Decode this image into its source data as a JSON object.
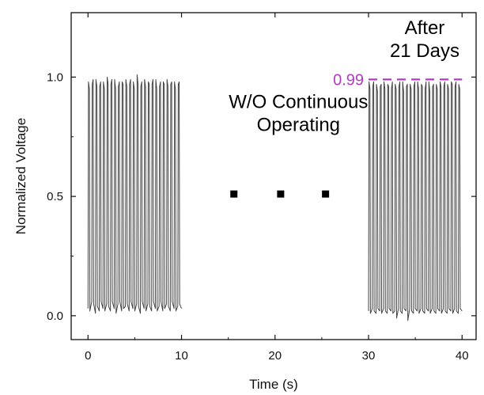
{
  "chart_data": {
    "type": "line",
    "title": "",
    "xlabel": "Time (s)",
    "ylabel": "Normalized Voltage",
    "xlim": [
      -1.8,
      41.5
    ],
    "ylim": [
      -0.1,
      1.27
    ],
    "x_ticks": [
      0,
      10,
      20,
      30,
      40
    ],
    "x_tick_labels": [
      "0",
      "10",
      "20",
      "30",
      "40"
    ],
    "y_ticks": [
      0.0,
      0.5,
      1.0
    ],
    "y_tick_labels": [
      "0.0",
      "0.5",
      "1.0"
    ],
    "grid": false,
    "legend": false,
    "series": [
      {
        "name": "",
        "segment": "initial",
        "color": "#444444",
        "x_range": [
          0,
          10
        ],
        "cycles": 25,
        "high_level": 0.98,
        "low_level": 0.03,
        "x": [
          0.0,
          0.05,
          0.15,
          0.2,
          0.4,
          0.45,
          0.55,
          0.6,
          0.8,
          0.85,
          0.95,
          1.0,
          1.2,
          1.25,
          1.35,
          1.4,
          1.6,
          1.65,
          1.75,
          1.8,
          2.0,
          2.05,
          2.15,
          2.2,
          2.4,
          2.45,
          2.55,
          2.6,
          2.8,
          2.85,
          2.95,
          3.0,
          3.2,
          3.25,
          3.35,
          3.4,
          3.6,
          3.65,
          3.75,
          3.8,
          4.0,
          4.05,
          4.15,
          4.2,
          4.4,
          4.45,
          4.55,
          4.6,
          4.8,
          4.85,
          4.95,
          5.0,
          5.2,
          5.25,
          5.35,
          5.4,
          5.6,
          5.65,
          5.75,
          5.8,
          6.0,
          6.05,
          6.15,
          6.2,
          6.4,
          6.45,
          6.55,
          6.6,
          6.8,
          6.85,
          6.95,
          7.0,
          7.2,
          7.25,
          7.35,
          7.4,
          7.6,
          7.65,
          7.75,
          7.8,
          8.0,
          8.05,
          8.15,
          8.2,
          8.4,
          8.45,
          8.55,
          8.6,
          8.8,
          8.85,
          8.95,
          9.0,
          9.2,
          9.25,
          9.35,
          9.4,
          9.6,
          9.65,
          9.75,
          9.8,
          10.0
        ],
        "y": [
          0.03,
          0.98,
          0.95,
          0.02,
          0.06,
          0.97,
          0.99,
          0.05,
          0.01,
          0.99,
          0.96,
          0.04,
          0.02,
          0.96,
          0.98,
          0.06,
          0.03,
          0.98,
          0.95,
          0.02,
          0.05,
          1.0,
          0.97,
          0.04,
          0.02,
          0.97,
          0.99,
          0.06,
          0.03,
          0.99,
          0.95,
          0.01,
          0.05,
          0.96,
          0.98,
          0.06,
          0.02,
          0.98,
          0.97,
          0.03,
          0.04,
          0.99,
          0.96,
          0.05,
          0.02,
          0.97,
          0.99,
          0.06,
          0.03,
          0.98,
          0.95,
          0.02,
          0.05,
          1.01,
          0.97,
          0.04,
          0.01,
          0.96,
          0.98,
          0.06,
          0.03,
          0.99,
          0.96,
          0.02,
          0.05,
          0.98,
          0.97,
          0.04,
          0.02,
          0.97,
          0.99,
          0.06,
          0.03,
          0.99,
          0.95,
          0.02,
          0.04,
          0.96,
          0.98,
          0.06,
          0.02,
          0.98,
          0.97,
          0.03,
          0.05,
          0.99,
          0.96,
          0.04,
          0.02,
          0.97,
          0.98,
          0.06,
          0.03,
          0.98,
          0.95,
          0.02,
          0.04,
          0.97,
          0.98,
          0.05,
          0.03
        ]
      },
      {
        "name": "",
        "segment": "after-21-days",
        "color": "#444444",
        "x_range": [
          30,
          40
        ],
        "cycles": 25,
        "high_level": 0.97,
        "low_level": 0.02,
        "x": [
          30.0,
          30.05,
          30.15,
          30.2,
          30.4,
          30.45,
          30.55,
          30.6,
          30.8,
          30.85,
          30.95,
          31.0,
          31.2,
          31.25,
          31.35,
          31.4,
          31.6,
          31.65,
          31.75,
          31.8,
          32.0,
          32.05,
          32.15,
          32.2,
          32.4,
          32.45,
          32.55,
          32.6,
          32.8,
          32.85,
          32.95,
          33.0,
          33.2,
          33.25,
          33.35,
          33.4,
          33.6,
          33.65,
          33.75,
          33.8,
          34.0,
          34.05,
          34.15,
          34.2,
          34.4,
          34.45,
          34.55,
          34.6,
          34.8,
          34.85,
          34.95,
          35.0,
          35.2,
          35.25,
          35.35,
          35.4,
          35.6,
          35.65,
          35.75,
          35.8,
          36.0,
          36.05,
          36.15,
          36.2,
          36.4,
          36.45,
          36.55,
          36.6,
          36.8,
          36.85,
          36.95,
          37.0,
          37.2,
          37.25,
          37.35,
          37.4,
          37.6,
          37.65,
          37.75,
          37.8,
          38.0,
          38.05,
          38.15,
          38.2,
          38.4,
          38.45,
          38.55,
          38.6,
          38.8,
          38.85,
          38.95,
          39.0,
          39.2,
          39.25,
          39.35,
          39.4,
          39.6,
          39.65,
          39.75,
          39.8,
          40.0
        ],
        "y": [
          0.02,
          0.98,
          0.95,
          0.01,
          0.03,
          0.96,
          0.98,
          0.02,
          0.01,
          0.97,
          0.94,
          0.03,
          0.02,
          0.96,
          0.97,
          0.01,
          0.03,
          0.98,
          0.95,
          0.02,
          0.01,
          0.97,
          0.96,
          0.03,
          0.02,
          0.95,
          0.98,
          0.01,
          0.02,
          0.97,
          0.95,
          -0.01,
          0.03,
          0.96,
          0.98,
          0.02,
          0.01,
          0.98,
          0.94,
          0.03,
          0.02,
          0.96,
          0.97,
          -0.02,
          0.03,
          0.97,
          0.95,
          0.02,
          0.01,
          0.96,
          0.98,
          0.03,
          0.02,
          0.98,
          0.95,
          0.01,
          0.03,
          0.97,
          0.96,
          0.02,
          0.01,
          0.95,
          0.98,
          0.03,
          0.02,
          0.98,
          0.94,
          0.01,
          0.03,
          0.96,
          0.97,
          0.02,
          0.01,
          0.97,
          0.95,
          0.03,
          0.02,
          0.98,
          0.96,
          0.01,
          0.03,
          0.96,
          0.98,
          0.02,
          0.01,
          0.97,
          0.95,
          0.03,
          0.02,
          0.98,
          0.97,
          0.01,
          0.03,
          0.96,
          0.98,
          0.02,
          0.01,
          0.97,
          0.95,
          0.03,
          0.02
        ]
      }
    ],
    "gap_markers": {
      "color": "#000000",
      "x": [
        15.6,
        20.6,
        25.4
      ],
      "y": [
        0.51,
        0.51,
        0.51
      ]
    },
    "reference_line": {
      "value": 0.99,
      "label": "0.99",
      "color": "#b23bbf",
      "style": "dashed",
      "x_range": [
        30,
        40
      ]
    },
    "annotations": [
      {
        "id": "gap",
        "lines": [
          "W/O Continuous",
          "Operating"
        ],
        "x": 22.5,
        "y": 0.87,
        "anchor": "middle",
        "color": "#000000"
      },
      {
        "id": "after",
        "lines": [
          "After",
          "21 Days"
        ],
        "x": 36.0,
        "y": 1.18,
        "anchor": "middle",
        "color": "#000000"
      }
    ],
    "colors": {
      "axis": "#111111",
      "signal": "#444444",
      "reference": "#b23bbf",
      "background": "#ffffff"
    }
  }
}
